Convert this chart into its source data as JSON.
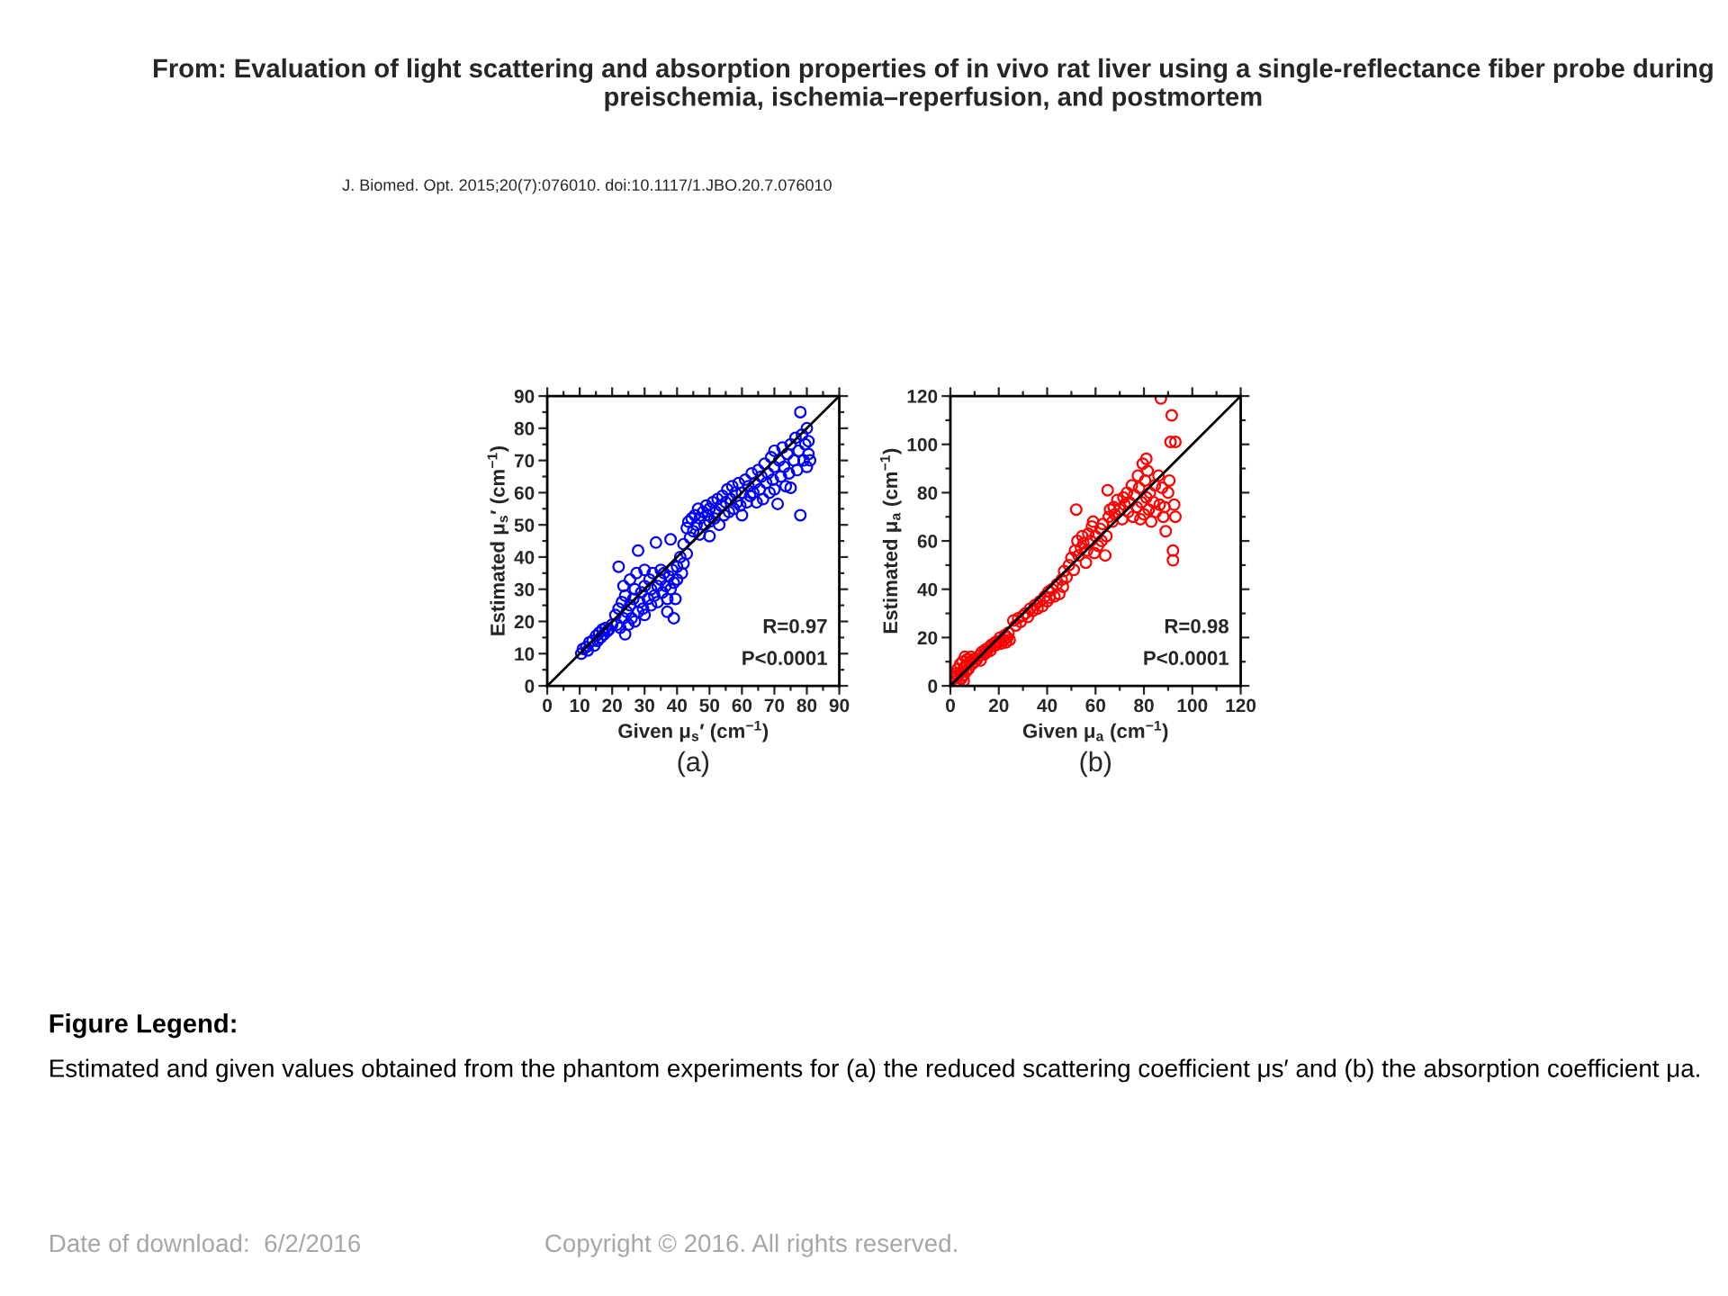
{
  "chart_data": [
    {
      "type": "other",
      "title": "From: Evaluation of light scattering and absorption properties of in vivo rat liver using a single-reflectance fiber probe during preischemia, ischemia–reperfusion, and postmortem",
      "subtitle": "J. Biomed. Opt. 2015;20(7):076010. doi:10.1117/1.JBO.20.7.076010",
      "annotations": [
        "Figure Legend:",
        "Estimated and given values obtained from the phantom experiments for (a) the reduced scattering coefficient μs′ and (b) the absorption coefficient μa.",
        "Date of download:  6/2/2016",
        "Copyright © 2016. All rights reserved."
      ]
    },
    {
      "type": "scatter",
      "xlabel": "Given μ$_{s}$′ (cm$^{−1}$)",
      "ylabel": "Estimated μ$_{s}$′ (cm$^{−1}$)",
      "xlim": [
        0,
        90
      ],
      "ylim": [
        0,
        90
      ],
      "xticks": [
        0,
        {
          "value": 5,
          "label": null
        },
        10,
        {
          "value": 15,
          "label": null
        },
        20,
        {
          "value": 25,
          "label": null
        },
        30,
        {
          "value": 35,
          "label": null
        },
        40,
        {
          "value": 45,
          "label": null
        },
        50,
        {
          "value": 55,
          "label": null
        },
        60,
        {
          "value": 65,
          "label": null
        },
        70,
        {
          "value": 75,
          "label": null
        },
        80,
        {
          "value": 85,
          "label": null
        },
        90
      ],
      "yticks": [
        0,
        {
          "value": 5,
          "label": null
        },
        10,
        {
          "value": 15,
          "label": null
        },
        20,
        {
          "value": 25,
          "label": null
        },
        30,
        {
          "value": 35,
          "label": null
        },
        40,
        {
          "value": 45,
          "label": null
        },
        50,
        {
          "value": 55,
          "label": null
        },
        60,
        {
          "value": 65,
          "label": null
        },
        70,
        {
          "value": 75,
          "label": null
        },
        80,
        {
          "value": 85,
          "label": null
        },
        90
      ],
      "annotations": [
        "R=0.97",
        "P<0.0001",
        "(a)"
      ],
      "series": [
        {
          "type": "scatter",
          "marker": "circle",
          "color": "#0000ff",
          "x": [
            10.5,
            11,
            12,
            12.5,
            13,
            14,
            14.5,
            15,
            15.5,
            16,
            16.5,
            17,
            17.5,
            18,
            18.5,
            19,
            20,
            21,
            21.5,
            22,
            22,
            22.5,
            23,
            23.5,
            23.5,
            24,
            24,
            24.5,
            25,
            25.5,
            25.5,
            26,
            26.5,
            27,
            27,
            27.5,
            28,
            28,
            28.5,
            29,
            29.5,
            30,
            30,
            30,
            31,
            31.5,
            32,
            32,
            32.5,
            33,
            33.5,
            34,
            34,
            35,
            35,
            35.5,
            36,
            36.5,
            37,
            37,
            37.5,
            38,
            38,
            38.5,
            39,
            39,
            39.5,
            40,
            40,
            41,
            41.5,
            42,
            42,
            43,
            43,
            43.5,
            44,
            44.5,
            45,
            45.5,
            46,
            46.5,
            47,
            47,
            48,
            48.5,
            49,
            49.5,
            50,
            50,
            50,
            51,
            51.5,
            52,
            52.5,
            53,
            53.5,
            54,
            54.5,
            55,
            55.5,
            56,
            56.5,
            57,
            57.5,
            58,
            58.5,
            59,
            59.5,
            60,
            60,
            61,
            61.5,
            62,
            62.5,
            63,
            63.5,
            64,
            64.5,
            65,
            65.5,
            66,
            66.5,
            67,
            67.5,
            68,
            68.5,
            69,
            69.5,
            70,
            70,
            70,
            71,
            71.5,
            72,
            72.5,
            73,
            73.5,
            74,
            74.5,
            75,
            75,
            76,
            76.5,
            77,
            77.5,
            78,
            78,
            78.5,
            79,
            79.5,
            80,
            80,
            80.5,
            80.5,
            81
          ],
          "values": [
            10,
            11.5,
            12,
            11,
            13.5,
            14,
            12.5,
            15.5,
            14,
            16.5,
            15,
            17.5,
            16,
            18,
            17,
            17.5,
            19,
            22,
            19,
            24,
            37,
            18,
            26,
            21,
            31,
            16,
            28,
            23,
            19,
            25,
            33,
            21,
            27,
            20,
            30,
            35,
            23,
            42,
            26,
            29,
            24,
            31,
            22,
            36,
            27,
            33,
            25,
            30,
            35,
            28,
            44.5,
            31,
            26,
            36,
            33,
            29,
            35,
            31,
            27,
            23,
            34,
            30,
            45.5,
            36,
            21,
            32,
            27,
            37,
            33,
            40,
            35,
            38,
            44,
            49,
            41,
            51,
            46,
            52,
            48,
            53,
            50,
            55,
            47,
            52,
            54,
            50,
            56,
            53,
            55,
            46.5,
            51,
            57,
            52,
            54,
            58,
            50,
            56,
            59,
            53,
            57,
            61,
            54,
            58,
            62,
            55,
            60,
            57,
            63,
            56,
            60,
            53,
            64,
            57,
            62,
            59,
            66,
            60,
            63,
            57,
            67,
            61,
            65,
            58,
            69,
            63,
            66,
            60,
            71,
            64,
            68,
            73,
            61,
            56.5,
            70,
            65,
            74,
            68,
            62,
            72,
            66,
            75,
            61.5,
            70,
            77,
            67,
            73,
            53,
            85,
            78,
            70,
            75,
            68,
            80,
            72,
            76,
            70
          ]
        },
        {
          "type": "line",
          "color": "#000000",
          "x": [
            0,
            90
          ],
          "values": [
            0,
            90
          ]
        }
      ]
    },
    {
      "type": "scatter",
      "xlabel": "Given μ$_{a}$ (cm$^{−1}$)",
      "ylabel": "Estimated μ$_{a}$ (cm$^{−1}$)",
      "xlim": [
        0,
        120
      ],
      "ylim": [
        0,
        120
      ],
      "xticks": [
        0,
        {
          "value": 10,
          "label": null
        },
        20,
        {
          "value": 30,
          "label": null
        },
        40,
        {
          "value": 50,
          "label": null
        },
        60,
        {
          "value": 70,
          "label": null
        },
        80,
        {
          "value": 90,
          "label": null
        },
        100,
        {
          "value": 110,
          "label": null
        },
        120
      ],
      "yticks": [
        0,
        {
          "value": 10,
          "label": null
        },
        20,
        {
          "value": 30,
          "label": null
        },
        40,
        {
          "value": 50,
          "label": null
        },
        60,
        {
          "value": 70,
          "label": null
        },
        80,
        {
          "value": 90,
          "label": null
        },
        100,
        {
          "value": 110,
          "label": null
        },
        120
      ],
      "annotations": [
        "R=0.98",
        "P<0.0001",
        "(b)"
      ],
      "series": [
        {
          "type": "scatter",
          "marker": "circle",
          "color": "#ff0000",
          "x": [
            1,
            1.5,
            5.5,
            2,
            2.5,
            3,
            3,
            3.5,
            4,
            4,
            4.5,
            5,
            5,
            5.5,
            6,
            6,
            6.5,
            7,
            7,
            7.5,
            8,
            8.5,
            9,
            9.5,
            10,
            11,
            12,
            12.5,
            13,
            14,
            14.5,
            15,
            16,
            16.5,
            17,
            18,
            18.5,
            19,
            20,
            20.5,
            21,
            22,
            22.5,
            23,
            23.5,
            24,
            24.5,
            26,
            27,
            28,
            29,
            30,
            31,
            32,
            33,
            34,
            35,
            36,
            37,
            38,
            39,
            40,
            40.5,
            41,
            42,
            43,
            44,
            45,
            46,
            46.5,
            47,
            48,
            49,
            50,
            51,
            51.5,
            52,
            52.5,
            53,
            54,
            54.5,
            55,
            56,
            56.5,
            57,
            58,
            58.5,
            59,
            59.5,
            60,
            61,
            62,
            62.5,
            63,
            64,
            64.5,
            65,
            65.5,
            66,
            67,
            67.5,
            68,
            69,
            70,
            71,
            71.5,
            72,
            73,
            73.5,
            74,
            75,
            75.5,
            76,
            77,
            77.5,
            78,
            78.5,
            79,
            79.5,
            80,
            80.5,
            81,
            81,
            81.5,
            82,
            82.5,
            83,
            84,
            84.5,
            85,
            86,
            86.5,
            87,
            87.5,
            88,
            88.5,
            89,
            90,
            90.5,
            91,
            91.5,
            92,
            92,
            92.5,
            93,
            93
          ],
          "values": [
            4,
            3,
            2,
            5,
            2,
            4,
            7,
            1.5,
            5.5,
            9,
            3,
            6,
            10,
            4.5,
            8,
            12,
            6,
            9,
            11,
            7,
            10,
            12,
            9,
            11,
            10,
            11,
            12.5,
            10.5,
            14,
            13,
            15,
            14,
            16,
            14.5,
            17,
            16.5,
            18,
            17,
            18.5,
            20,
            17.5,
            19,
            21,
            18,
            20,
            22,
            19,
            27,
            25,
            28,
            26.5,
            29,
            30,
            28.5,
            32,
            31,
            33.5,
            32,
            35,
            33,
            37,
            35,
            39,
            36.5,
            40,
            37,
            42,
            38,
            44,
            41,
            47.5,
            45,
            50,
            53,
            48,
            56,
            73,
            60,
            54,
            57,
            62,
            59,
            51,
            56,
            63,
            60,
            66,
            68,
            55,
            62,
            58,
            65,
            60,
            67,
            54,
            62,
            81,
            70,
            73,
            68,
            74,
            71,
            77,
            73,
            69,
            78,
            75,
            80,
            72,
            76,
            83,
            70,
            79,
            74,
            87,
            82,
            69,
            76,
            92,
            71,
            85,
            78,
            94,
            89,
            73,
            80,
            68,
            76,
            83,
            72,
            87,
            75,
            119,
            82,
            70,
            74,
            64,
            80,
            85,
            101,
            112,
            56,
            52,
            75,
            101,
            70
          ]
        },
        {
          "type": "line",
          "color": "#000000",
          "x": [
            0,
            120
          ],
          "values": [
            0,
            120
          ]
        }
      ]
    }
  ]
}
